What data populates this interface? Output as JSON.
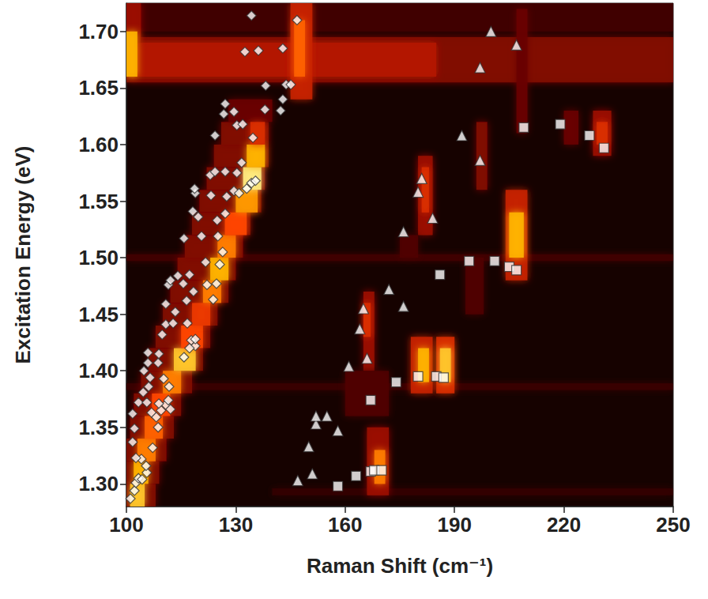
{
  "chart_data": {
    "type": "scatter",
    "x_label": "Raman Shift (cm⁻¹)",
    "y_label": "Excitation Energy (eV)",
    "xlim": [
      100,
      250
    ],
    "xticks": [
      100,
      130,
      160,
      190,
      220,
      250
    ],
    "ylim": [
      1.28,
      1.725
    ],
    "yticks": [
      {
        "value": 1.3,
        "label": "1.30"
      },
      {
        "value": 1.35,
        "label": "1.35"
      },
      {
        "value": 1.4,
        "label": "1.40"
      },
      {
        "value": 1.45,
        "label": "1.45"
      },
      {
        "value": 1.5,
        "label": "1.50"
      },
      {
        "value": 1.55,
        "label": "1.55"
      },
      {
        "value": 1.6,
        "label": "1.60"
      },
      {
        "value": 1.65,
        "label": "1.65"
      },
      {
        "value": 1.7,
        "label": "1.70"
      }
    ],
    "grid": false,
    "heatmap": {
      "intensity_range": [
        0,
        1
      ],
      "cells": [
        [
          100,
          250,
          1.7,
          1.725,
          0.15
        ],
        [
          100,
          250,
          1.655,
          1.695,
          0.3
        ],
        [
          100,
          185,
          1.66,
          1.69,
          0.4
        ],
        [
          100,
          104,
          1.69,
          1.725,
          0.35
        ],
        [
          100,
          103,
          1.66,
          1.7,
          0.8
        ],
        [
          145,
          151,
          1.64,
          1.725,
          0.45
        ],
        [
          146,
          149,
          1.66,
          1.71,
          0.65
        ],
        [
          100,
          250,
          1.497,
          1.503,
          0.15
        ],
        [
          100,
          250,
          1.383,
          1.389,
          0.12
        ],
        [
          140,
          250,
          1.29,
          1.296,
          0.1
        ],
        [
          100,
          108,
          1.28,
          1.3,
          0.3
        ],
        [
          100,
          109,
          1.3,
          1.32,
          0.3
        ],
        [
          100,
          111,
          1.32,
          1.34,
          0.3
        ],
        [
          101,
          113,
          1.34,
          1.36,
          0.3
        ],
        [
          102,
          115,
          1.36,
          1.38,
          0.3
        ],
        [
          104,
          118,
          1.38,
          1.4,
          0.3
        ],
        [
          106,
          121,
          1.4,
          1.42,
          0.3
        ],
        [
          108,
          123,
          1.42,
          1.44,
          0.3
        ],
        [
          110,
          125,
          1.44,
          1.46,
          0.3
        ],
        [
          112,
          128,
          1.46,
          1.48,
          0.3
        ],
        [
          114,
          130,
          1.48,
          1.5,
          0.3
        ],
        [
          116,
          132,
          1.5,
          1.52,
          0.3
        ],
        [
          118,
          134,
          1.52,
          1.54,
          0.3
        ],
        [
          120,
          137,
          1.54,
          1.56,
          0.3
        ],
        [
          122,
          138,
          1.56,
          1.58,
          0.3
        ],
        [
          124,
          139,
          1.58,
          1.6,
          0.3
        ],
        [
          126,
          139,
          1.6,
          1.62,
          0.3
        ],
        [
          128,
          140,
          1.62,
          1.64,
          0.25
        ],
        [
          101,
          105,
          1.28,
          1.3,
          0.85
        ],
        [
          102,
          106,
          1.3,
          1.32,
          0.8
        ],
        [
          103,
          108,
          1.32,
          1.34,
          0.7
        ],
        [
          105,
          110,
          1.34,
          1.36,
          0.65
        ],
        [
          107,
          112,
          1.36,
          1.38,
          0.6
        ],
        [
          110,
          115,
          1.38,
          1.4,
          0.7
        ],
        [
          113,
          119,
          1.4,
          1.42,
          0.85
        ],
        [
          115,
          121,
          1.42,
          1.44,
          0.6
        ],
        [
          118,
          123,
          1.44,
          1.46,
          0.55
        ],
        [
          121,
          126,
          1.46,
          1.48,
          0.7
        ],
        [
          123,
          128,
          1.48,
          1.5,
          0.8
        ],
        [
          125,
          130,
          1.5,
          1.52,
          0.7
        ],
        [
          127,
          133,
          1.52,
          1.54,
          0.6
        ],
        [
          130,
          136,
          1.54,
          1.56,
          0.75
        ],
        [
          132,
          137,
          1.56,
          1.58,
          0.95
        ],
        [
          133,
          138,
          1.58,
          1.6,
          0.8
        ],
        [
          134,
          138,
          1.6,
          1.62,
          0.5
        ],
        [
          165,
          168,
          1.4,
          1.47,
          0.35
        ],
        [
          165,
          167,
          1.43,
          1.46,
          0.5
        ],
        [
          166,
          172,
          1.29,
          1.35,
          0.35
        ],
        [
          168,
          171,
          1.3,
          1.33,
          0.7
        ],
        [
          160,
          172,
          1.36,
          1.4,
          0.2
        ],
        [
          178,
          184,
          1.38,
          1.43,
          0.45
        ],
        [
          180,
          183,
          1.39,
          1.42,
          0.8
        ],
        [
          185,
          190,
          1.38,
          1.43,
          0.5
        ],
        [
          186,
          189,
          1.39,
          1.42,
          0.85
        ],
        [
          180,
          184,
          1.52,
          1.59,
          0.35
        ],
        [
          181,
          183,
          1.54,
          1.58,
          0.5
        ],
        [
          204,
          210,
          1.48,
          1.56,
          0.45
        ],
        [
          205,
          209,
          1.5,
          1.54,
          0.8
        ],
        [
          196,
          199,
          1.56,
          1.62,
          0.3
        ],
        [
          207,
          210,
          1.61,
          1.72,
          0.25
        ],
        [
          228,
          233,
          1.59,
          1.63,
          0.35
        ],
        [
          229,
          232,
          1.6,
          1.62,
          0.5
        ],
        [
          220,
          224,
          1.6,
          1.63,
          0.25
        ],
        [
          193,
          198,
          1.45,
          1.5,
          0.2
        ],
        [
          175,
          180,
          1.5,
          1.52,
          0.2
        ]
      ]
    },
    "series": [
      {
        "marker": "diamond",
        "color": "#ffffff",
        "values": [
          [
            101.1,
            1.287
          ],
          [
            102.2,
            1.294
          ],
          [
            102.6,
            1.301
          ],
          [
            103.3,
            1.305
          ],
          [
            104.3,
            1.304
          ],
          [
            105.6,
            1.31
          ],
          [
            105.4,
            1.316
          ],
          [
            104.1,
            1.322
          ],
          [
            102.6,
            1.323
          ],
          [
            101.7,
            1.337
          ],
          [
            102.2,
            1.349
          ],
          [
            101.7,
            1.362
          ],
          [
            103.3,
            1.372
          ],
          [
            104.6,
            1.381
          ],
          [
            106.1,
            1.386
          ],
          [
            106.5,
            1.394
          ],
          [
            104.8,
            1.4
          ],
          [
            105.9,
            1.407
          ],
          [
            105.9,
            1.416
          ],
          [
            105.6,
            1.372
          ],
          [
            106.9,
            1.363
          ],
          [
            108.2,
            1.359
          ],
          [
            109.5,
            1.365
          ],
          [
            110.8,
            1.37
          ],
          [
            111.5,
            1.374
          ],
          [
            112.1,
            1.366
          ],
          [
            108.7,
            1.35
          ],
          [
            107.2,
            1.332
          ],
          [
            108.9,
            1.371
          ],
          [
            108.7,
            1.407
          ],
          [
            110.2,
            1.393
          ],
          [
            111.7,
            1.386
          ],
          [
            108.9,
            1.415
          ],
          [
            109.8,
            1.432
          ],
          [
            110.8,
            1.441
          ],
          [
            112.8,
            1.442
          ],
          [
            113.4,
            1.452
          ],
          [
            110.8,
            1.459
          ],
          [
            111.5,
            1.476
          ],
          [
            112.1,
            1.48
          ],
          [
            114.1,
            1.484
          ],
          [
            115.6,
            1.477
          ],
          [
            116.5,
            1.462
          ],
          [
            116.7,
            1.442
          ],
          [
            117.8,
            1.427
          ],
          [
            118.9,
            1.422
          ],
          [
            117.3,
            1.42
          ],
          [
            115.8,
            1.412
          ],
          [
            118.9,
            1.428
          ],
          [
            115.8,
            1.517
          ],
          [
            117.3,
            1.485
          ],
          [
            118.4,
            1.47
          ],
          [
            118.2,
            1.541
          ],
          [
            118.9,
            1.557
          ],
          [
            118.7,
            1.561
          ],
          [
            119.7,
            1.536
          ],
          [
            120.6,
            1.519
          ],
          [
            121.7,
            1.496
          ],
          [
            122.1,
            1.476
          ],
          [
            123.8,
            1.463
          ],
          [
            124.7,
            1.477
          ],
          [
            125.6,
            1.494
          ],
          [
            126.4,
            1.505
          ],
          [
            125.1,
            1.519
          ],
          [
            124.9,
            1.533
          ],
          [
            123.2,
            1.555
          ],
          [
            123.0,
            1.573
          ],
          [
            124.3,
            1.576
          ],
          [
            124.3,
            1.608
          ],
          [
            127.1,
            1.576
          ],
          [
            127.5,
            1.554
          ],
          [
            127.1,
            1.539
          ],
          [
            129.5,
            1.559
          ],
          [
            130.3,
            1.575
          ],
          [
            126.7,
            1.627
          ],
          [
            127.1,
            1.636
          ],
          [
            129.5,
            1.629
          ],
          [
            130.3,
            1.617
          ],
          [
            131.9,
            1.618
          ],
          [
            131.6,
            1.584
          ],
          [
            130.9,
            1.557
          ],
          [
            133.0,
            1.561
          ],
          [
            134.3,
            1.566
          ],
          [
            135.4,
            1.568
          ],
          [
            134.7,
            1.606
          ],
          [
            132.5,
            1.682
          ],
          [
            134.3,
            1.714
          ],
          [
            136.2,
            1.683
          ],
          [
            138.2,
            1.652
          ],
          [
            138.0,
            1.631
          ],
          [
            142.3,
            1.63
          ],
          [
            142.9,
            1.64
          ],
          [
            143.8,
            1.653
          ],
          [
            145.1,
            1.653
          ],
          [
            142.9,
            1.685
          ],
          [
            146.8,
            1.71
          ]
        ]
      },
      {
        "marker": "triangle",
        "color": "#ffffff",
        "values": [
          [
            147,
            1.303
          ],
          [
            150,
            1.333
          ],
          [
            151,
            1.309
          ],
          [
            152,
            1.353
          ],
          [
            152,
            1.36
          ],
          [
            155,
            1.36
          ],
          [
            158,
            1.347
          ],
          [
            161,
            1.404
          ],
          [
            164,
            1.437
          ],
          [
            165,
            1.455
          ],
          [
            166,
            1.411
          ],
          [
            172,
            1.472
          ],
          [
            176,
            1.457
          ],
          [
            176,
            1.523
          ],
          [
            180,
            1.558
          ],
          [
            181,
            1.57
          ],
          [
            184,
            1.535
          ],
          [
            192,
            1.608
          ],
          [
            197,
            1.586
          ],
          [
            197,
            1.668
          ],
          [
            200,
            1.7
          ],
          [
            207,
            1.688
          ]
        ]
      },
      {
        "marker": "square",
        "color": "#ffffff",
        "values": [
          [
            158,
            1.298
          ],
          [
            163,
            1.307
          ],
          [
            167,
            1.311
          ],
          [
            168,
            1.312
          ],
          [
            170,
            1.312
          ],
          [
            167,
            1.374
          ],
          [
            174,
            1.39
          ],
          [
            180,
            1.395
          ],
          [
            185,
            1.395
          ],
          [
            187,
            1.394
          ],
          [
            186,
            1.485
          ],
          [
            194,
            1.497
          ],
          [
            201,
            1.497
          ],
          [
            205,
            1.492
          ],
          [
            207,
            1.489
          ],
          [
            209,
            1.615
          ],
          [
            219,
            1.618
          ],
          [
            227,
            1.608
          ],
          [
            231,
            1.597
          ]
        ]
      }
    ]
  }
}
